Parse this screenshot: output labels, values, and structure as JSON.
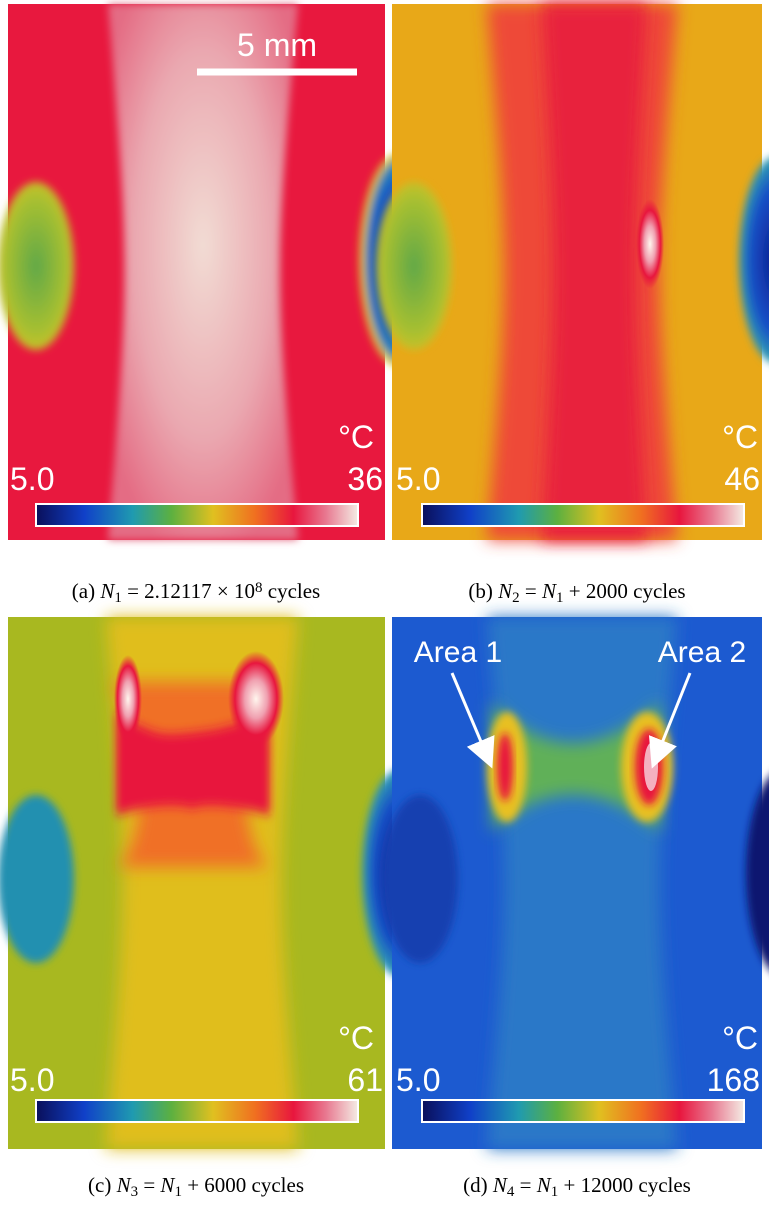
{
  "panels": [
    {
      "caption": [
        {
          "text": "(a) "
        },
        {
          "text": "N",
          "style": "italic"
        },
        {
          "text": "1",
          "style": "sub"
        },
        {
          "text": " = 2.12117 × 10"
        },
        {
          "text": "8",
          "style": "sup"
        },
        {
          "text": " cycles"
        }
      ],
      "unit": "°C",
      "min": "5.0",
      "max": "36",
      "scale_bar": "5 mm"
    },
    {
      "caption": [
        {
          "text": "(b) "
        },
        {
          "text": "N",
          "style": "italic"
        },
        {
          "text": "2",
          "style": "sub"
        },
        {
          "text": " = "
        },
        {
          "text": "N",
          "style": "italic"
        },
        {
          "text": "1",
          "style": "sub"
        },
        {
          "text": " + 2000 cycles"
        }
      ],
      "unit": "°C",
      "min": "5.0",
      "max": "46"
    },
    {
      "caption": [
        {
          "text": "(c) "
        },
        {
          "text": "N",
          "style": "italic"
        },
        {
          "text": "3",
          "style": "sub"
        },
        {
          "text": " = "
        },
        {
          "text": "N",
          "style": "italic"
        },
        {
          "text": "1",
          "style": "sub"
        },
        {
          "text": " + 6000 cycles"
        }
      ],
      "unit": "°C",
      "min": "5.0",
      "max": "61"
    },
    {
      "caption": [
        {
          "text": "(d) "
        },
        {
          "text": "N",
          "style": "italic"
        },
        {
          "text": "4",
          "style": "sub"
        },
        {
          "text": " = "
        },
        {
          "text": "N",
          "style": "italic"
        },
        {
          "text": "1",
          "style": "sub"
        },
        {
          "text": " + 12000 cycles"
        }
      ],
      "unit": "°C",
      "min": "5.0",
      "max": "168",
      "annotations": [
        "Area 1",
        "Area 2"
      ]
    }
  ]
}
